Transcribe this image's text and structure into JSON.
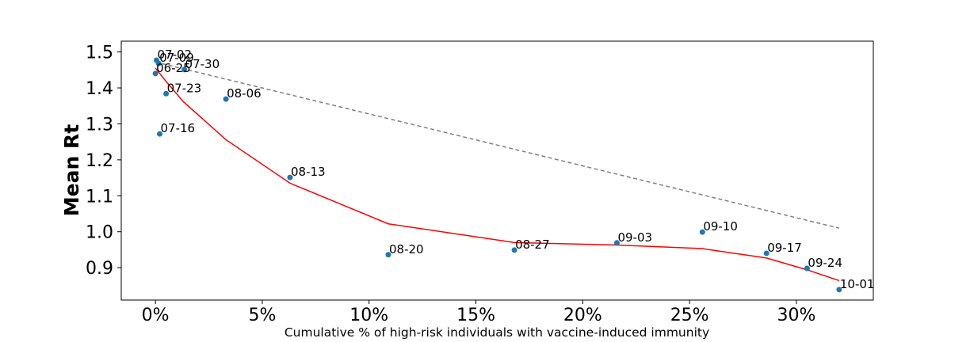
{
  "chart_data": {
    "type": "scatter",
    "xlabel": "Cumulative % of high-risk individuals with vaccine-induced immunity",
    "ylabel": "Mean Rt",
    "xlim": [
      -0.016,
      0.336
    ],
    "ylim": [
      0.81,
      1.53
    ],
    "x_ticks": [
      0,
      0.05,
      0.1,
      0.15,
      0.2,
      0.25,
      0.3
    ],
    "x_tick_labels": [
      "0%",
      "5%",
      "10%",
      "15%",
      "20%",
      "25%",
      "30%"
    ],
    "y_ticks": [
      0.9,
      1.0,
      1.1,
      1.2,
      1.3,
      1.4,
      1.5
    ],
    "y_tick_labels": [
      "0.9",
      "1.0",
      "1.1",
      "1.2",
      "1.3",
      "1.4",
      "1.5"
    ],
    "grid": false,
    "points": [
      {
        "label": "06-25",
        "x": 0.0,
        "y": 1.44
      },
      {
        "label": "07-02",
        "x": 0.0005,
        "y": 1.477
      },
      {
        "label": "07-09",
        "x": 0.0015,
        "y": 1.468
      },
      {
        "label": "07-16",
        "x": 0.002,
        "y": 1.272
      },
      {
        "label": "07-23",
        "x": 0.005,
        "y": 1.384
      },
      {
        "label": "07-30",
        "x": 0.0135,
        "y": 1.451
      },
      {
        "label": "08-06",
        "x": 0.033,
        "y": 1.369
      },
      {
        "label": "08-13",
        "x": 0.063,
        "y": 1.151
      },
      {
        "label": "08-20",
        "x": 0.109,
        "y": 0.936
      },
      {
        "label": "08-27",
        "x": 0.168,
        "y": 0.949
      },
      {
        "label": "09-03",
        "x": 0.216,
        "y": 0.969
      },
      {
        "label": "09-10",
        "x": 0.256,
        "y": 0.999
      },
      {
        "label": "09-17",
        "x": 0.286,
        "y": 0.94
      },
      {
        "label": "09-24",
        "x": 0.305,
        "y": 0.898
      },
      {
        "label": "10-01",
        "x": 0.32,
        "y": 0.839
      }
    ],
    "trend_fit": {
      "color": "#ff0000",
      "x": [
        0.0,
        0.005,
        0.013,
        0.033,
        0.063,
        0.109,
        0.168,
        0.216,
        0.256,
        0.286,
        0.305,
        0.32
      ],
      "y": [
        1.455,
        1.418,
        1.362,
        1.256,
        1.135,
        1.022,
        0.97,
        0.963,
        0.953,
        0.927,
        0.894,
        0.864
      ]
    },
    "reference_line": {
      "color": "#808080",
      "style": "dashed",
      "x": [
        0.0,
        0.32
      ],
      "y": [
        1.472,
        1.01
      ]
    },
    "point_color": "#1f77b4"
  }
}
